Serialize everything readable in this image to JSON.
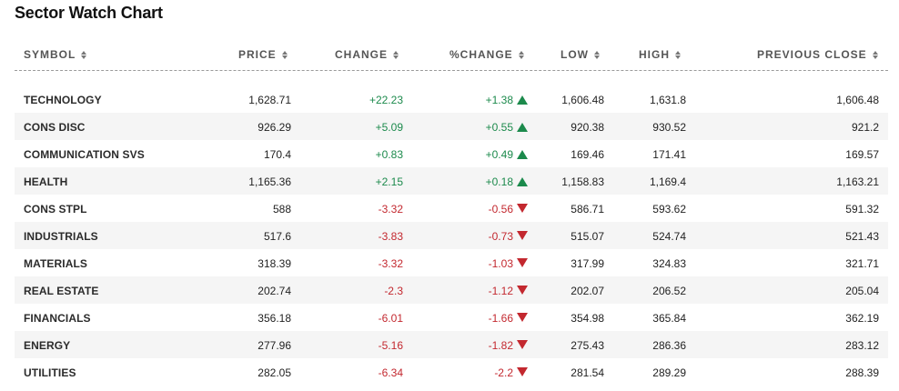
{
  "title": "Sector Watch Chart",
  "columns": {
    "symbol": "SYMBOL",
    "price": "PRICE",
    "change": "CHANGE",
    "pchange": "%CHANGE",
    "low": "LOW",
    "high": "HIGH",
    "prev": "PREVIOUS CLOSE"
  },
  "colors": {
    "positive": "#1c8a4c",
    "negative": "#c3282f",
    "row_alt": "#f5f5f5"
  },
  "rows": [
    {
      "symbol": "TECHNOLOGY",
      "price": "1,628.71",
      "change": "+22.23",
      "pchange": "+1.38",
      "direction": "up",
      "low": "1,606.48",
      "high": "1,631.8",
      "prev": "1,606.48"
    },
    {
      "symbol": "CONS DISC",
      "price": "926.29",
      "change": "+5.09",
      "pchange": "+0.55",
      "direction": "up",
      "low": "920.38",
      "high": "930.52",
      "prev": "921.2"
    },
    {
      "symbol": "COMMUNICATION SVS",
      "price": "170.4",
      "change": "+0.83",
      "pchange": "+0.49",
      "direction": "up",
      "low": "169.46",
      "high": "171.41",
      "prev": "169.57"
    },
    {
      "symbol": "HEALTH",
      "price": "1,165.36",
      "change": "+2.15",
      "pchange": "+0.18",
      "direction": "up",
      "low": "1,158.83",
      "high": "1,169.4",
      "prev": "1,163.21"
    },
    {
      "symbol": "CONS STPL",
      "price": "588",
      "change": "-3.32",
      "pchange": "-0.56",
      "direction": "down",
      "low": "586.71",
      "high": "593.62",
      "prev": "591.32"
    },
    {
      "symbol": "INDUSTRIALS",
      "price": "517.6",
      "change": "-3.83",
      "pchange": "-0.73",
      "direction": "down",
      "low": "515.07",
      "high": "524.74",
      "prev": "521.43"
    },
    {
      "symbol": "MATERIALS",
      "price": "318.39",
      "change": "-3.32",
      "pchange": "-1.03",
      "direction": "down",
      "low": "317.99",
      "high": "324.83",
      "prev": "321.71"
    },
    {
      "symbol": "REAL ESTATE",
      "price": "202.74",
      "change": "-2.3",
      "pchange": "-1.12",
      "direction": "down",
      "low": "202.07",
      "high": "206.52",
      "prev": "205.04"
    },
    {
      "symbol": "FINANCIALS",
      "price": "356.18",
      "change": "-6.01",
      "pchange": "-1.66",
      "direction": "down",
      "low": "354.98",
      "high": "365.84",
      "prev": "362.19"
    },
    {
      "symbol": "ENERGY",
      "price": "277.96",
      "change": "-5.16",
      "pchange": "-1.82",
      "direction": "down",
      "low": "275.43",
      "high": "286.36",
      "prev": "283.12"
    },
    {
      "symbol": "UTILITIES",
      "price": "282.05",
      "change": "-6.34",
      "pchange": "-2.2",
      "direction": "down",
      "low": "281.54",
      "high": "289.29",
      "prev": "288.39"
    }
  ]
}
